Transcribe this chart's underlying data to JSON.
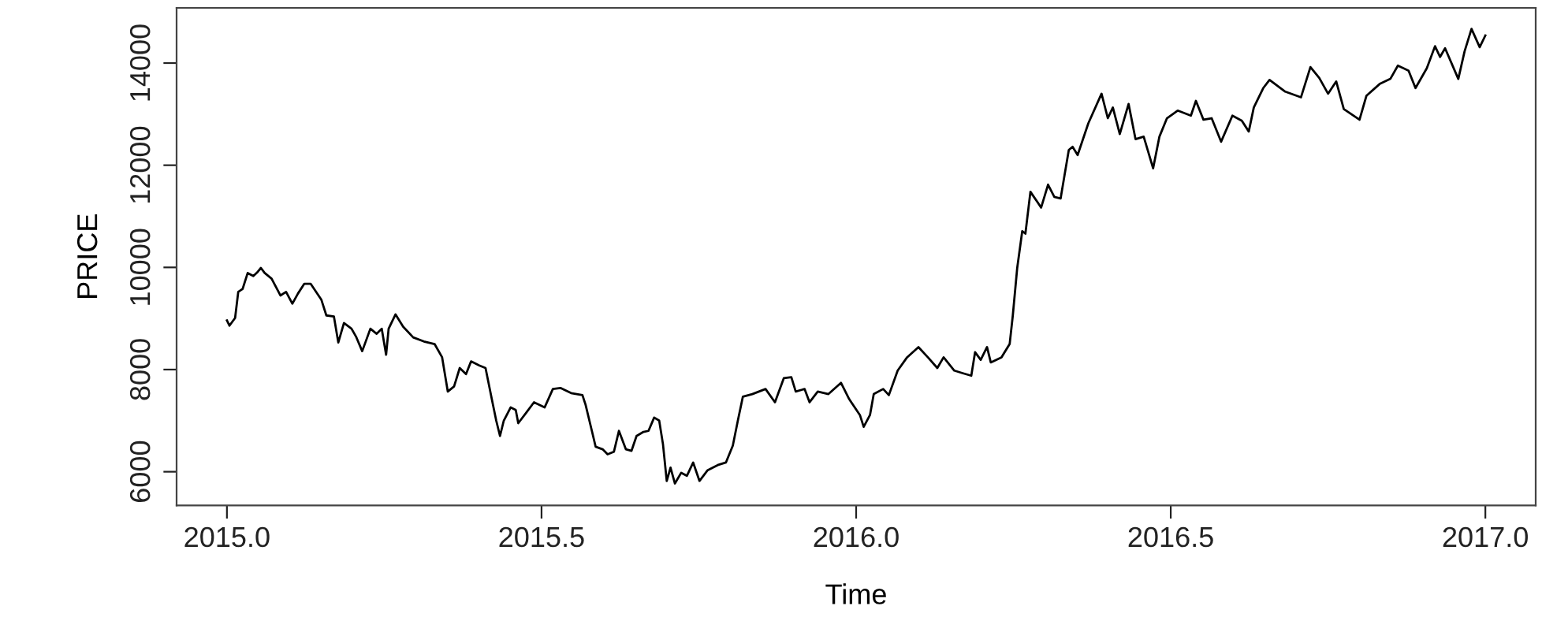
{
  "chart_data": {
    "type": "line",
    "xlabel": "Time",
    "ylabel": "PRICE",
    "xlim": [
      2014.92,
      2017.08
    ],
    "xticks": [
      {
        "value": 2015,
        "label": "2015.0"
      },
      {
        "value": 2015.5,
        "label": "2015.5"
      },
      {
        "value": 2016,
        "label": "2016.0"
      },
      {
        "value": 2016.5,
        "label": "2016.5"
      },
      {
        "value": 2017,
        "label": "2017.0"
      }
    ],
    "ylim": [
      5340,
      15080
    ],
    "yticks": [
      6000,
      8000,
      10000,
      12000,
      14000
    ],
    "grid": false,
    "legend": false,
    "series": [
      {
        "color": "#000000",
        "x": [
          2015.0,
          2015.004,
          2015.013,
          2015.018,
          2015.025,
          2015.033,
          2015.042,
          2015.048,
          2015.054,
          2015.06,
          2015.071,
          2015.085,
          2015.094,
          2015.104,
          2015.113,
          2015.123,
          2015.133,
          2015.15,
          2015.158,
          2015.17,
          2015.177,
          2015.186,
          2015.198,
          2015.205,
          2015.215,
          2015.228,
          2015.238,
          2015.246,
          2015.253,
          2015.257,
          2015.268,
          2015.28,
          2015.296,
          2015.313,
          2015.33,
          2015.342,
          2015.351,
          2015.361,
          2015.37,
          2015.38,
          2015.388,
          2015.401,
          2015.411,
          2015.421,
          2015.428,
          2015.434,
          2015.44,
          2015.451,
          2015.459,
          2015.463,
          2015.476,
          2015.488,
          2015.505,
          2015.518,
          2015.53,
          2015.547,
          2015.565,
          2015.57,
          2015.58,
          2015.586,
          2015.597,
          2015.605,
          2015.615,
          2015.623,
          2015.634,
          2015.643,
          2015.651,
          2015.662,
          2015.67,
          2015.679,
          2015.687,
          2015.693,
          2015.699,
          2015.705,
          2015.712,
          2015.722,
          2015.731,
          2015.741,
          2015.751,
          2015.764,
          2015.78,
          2015.793,
          2015.804,
          2015.812,
          2015.82,
          2015.835,
          2015.856,
          2015.871,
          2015.885,
          2015.897,
          2015.904,
          2015.918,
          2015.926,
          2015.939,
          2015.956,
          2015.976,
          2015.989,
          2016.006,
          2016.012,
          2016.022,
          2016.028,
          2016.043,
          2016.052,
          2016.066,
          2016.081,
          2016.099,
          2016.114,
          2016.129,
          2016.139,
          2016.156,
          2016.169,
          2016.183,
          2016.189,
          2016.198,
          2016.208,
          2016.214,
          2016.231,
          2016.244,
          2016.249,
          2016.256,
          2016.264,
          2016.269,
          2016.277,
          2016.288,
          2016.294,
          2016.305,
          2016.315,
          2016.325,
          2016.331,
          2016.338,
          2016.344,
          2016.352,
          2016.369,
          2016.39,
          2016.4,
          2016.408,
          2016.419,
          2016.433,
          2016.444,
          2016.457,
          2016.472,
          2016.482,
          2016.494,
          2016.511,
          2016.532,
          2016.54,
          2016.552,
          2016.565,
          2016.58,
          2016.598,
          2016.613,
          2016.624,
          2016.632,
          2016.647,
          2016.657,
          2016.682,
          2016.707,
          2016.722,
          2016.736,
          2016.75,
          2016.763,
          2016.775,
          2016.8,
          2016.811,
          2016.832,
          2016.849,
          2016.861,
          2016.878,
          2016.889,
          2016.907,
          2016.92,
          2016.928,
          2016.936,
          2016.957,
          2016.967,
          2016.978,
          2016.991,
          2017.0
        ],
        "values": [
          8960,
          8860,
          9010,
          9520,
          9580,
          9890,
          9830,
          9900,
          9990,
          9890,
          9780,
          9450,
          9520,
          9290,
          9490,
          9680,
          9680,
          9370,
          9060,
          9040,
          8530,
          8910,
          8800,
          8650,
          8360,
          8800,
          8700,
          8800,
          8290,
          8800,
          9080,
          8840,
          8630,
          8550,
          8500,
          8240,
          7570,
          7670,
          8030,
          7910,
          8160,
          8080,
          8030,
          7420,
          7000,
          6700,
          7000,
          7260,
          7210,
          6950,
          7160,
          7360,
          7260,
          7620,
          7640,
          7540,
          7500,
          7310,
          6800,
          6490,
          6440,
          6340,
          6390,
          6800,
          6440,
          6410,
          6700,
          6780,
          6800,
          7060,
          7000,
          6540,
          5820,
          6080,
          5770,
          5980,
          5920,
          6180,
          5820,
          6030,
          6130,
          6180,
          6510,
          7000,
          7470,
          7520,
          7620,
          7360,
          7830,
          7850,
          7570,
          7620,
          7360,
          7570,
          7520,
          7740,
          7420,
          7110,
          6880,
          7110,
          7520,
          7620,
          7500,
          7980,
          8240,
          8440,
          8240,
          8030,
          8240,
          7980,
          7930,
          7880,
          8340,
          8190,
          8440,
          8140,
          8240,
          8500,
          9060,
          9990,
          10710,
          10660,
          11480,
          11280,
          11170,
          11620,
          11380,
          11350,
          11790,
          12300,
          12360,
          12200,
          12820,
          13400,
          12920,
          13130,
          12610,
          13200,
          12510,
          12560,
          11940,
          12560,
          12920,
          13070,
          12970,
          13260,
          12890,
          12920,
          12460,
          12970,
          12870,
          12660,
          13130,
          13510,
          13670,
          13440,
          13330,
          13920,
          13710,
          13400,
          13640,
          13100,
          12890,
          13360,
          13590,
          13690,
          13950,
          13850,
          13510,
          13900,
          14330,
          14120,
          14290,
          13690,
          14230,
          14670,
          14310,
          14540
        ]
      }
    ]
  }
}
